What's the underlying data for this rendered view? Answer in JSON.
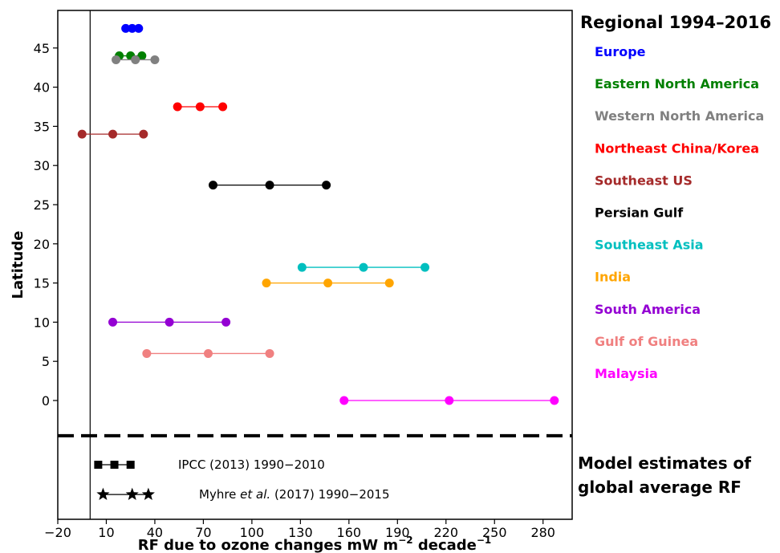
{
  "chart_data": {
    "type": "scatter",
    "xlabel": "RF due to ozone changes mW m",
    "xlabel_sup1": "−2",
    "xlabel_mid": " decade",
    "xlabel_sup2": "−1",
    "ylabel": "Latitude",
    "xlim": [
      -20,
      298
    ],
    "ylim": [
      -7,
      49
    ],
    "xticks": [
      "−20",
      "10",
      "40",
      "70",
      "100",
      "130",
      "160",
      "190",
      "220",
      "250",
      "280"
    ],
    "yticks": [
      "0",
      "5",
      "10",
      "15",
      "20",
      "25",
      "30",
      "35",
      "40",
      "45"
    ],
    "grid": false,
    "legend_title": "Regional 1994–2016",
    "legend_placement": "right",
    "series": [
      {
        "name": "Europe",
        "color": "#0000ff",
        "y": 47.5,
        "x": [
          22,
          26,
          30
        ]
      },
      {
        "name": "Eastern North America",
        "color": "#008000",
        "y": 44,
        "x": [
          18,
          25,
          32
        ]
      },
      {
        "name": "Western North America",
        "color": "#808080",
        "y": 43.5,
        "x": [
          16,
          28,
          40
        ]
      },
      {
        "name": "Northeast China/Korea",
        "color": "#ff0000",
        "y": 37.5,
        "x": [
          54,
          68,
          82
        ]
      },
      {
        "name": "Southeast US",
        "color": "#a52a2a",
        "y": 34,
        "x": [
          -5,
          14,
          33
        ]
      },
      {
        "name": "Persian Gulf",
        "color": "#000000",
        "y": 27.5,
        "x": [
          76,
          111,
          146
        ]
      },
      {
        "name": "Southeast Asia",
        "color": "#00bfbf",
        "y": 17,
        "x": [
          131,
          169,
          207
        ]
      },
      {
        "name": "India",
        "color": "#ffa500",
        "y": 15,
        "x": [
          109,
          147,
          185
        ]
      },
      {
        "name": "South America",
        "color": "#9400d3",
        "y": 10,
        "x": [
          14,
          49,
          84
        ]
      },
      {
        "name": "Gulf of Guinea",
        "color": "#f08080",
        "y": 6,
        "x": [
          35,
          73,
          111
        ]
      },
      {
        "name": "Malaysia",
        "color": "#ff00ff",
        "y": 0,
        "x": [
          157,
          222,
          287
        ]
      }
    ],
    "separator_y": -4.5,
    "vline_x": 0,
    "model_estimates_title_line1": "Model estimates of",
    "model_estimates_title_line2": "global average RF",
    "model_estimates": [
      {
        "label_pre": "IPCC (2013) 1990−2010",
        "label_italic": "",
        "label_post": "",
        "marker": "square",
        "y": -8.2,
        "x": [
          5,
          15,
          25
        ]
      },
      {
        "label_pre": "Myhre ",
        "label_italic": "et al.",
        "label_post": " (2017) 1990−2015",
        "marker": "star",
        "y": -12.0,
        "x": [
          8,
          26,
          36
        ]
      }
    ]
  }
}
